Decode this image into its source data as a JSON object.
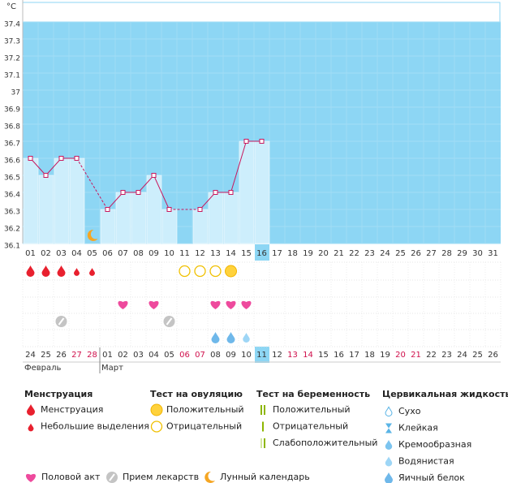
{
  "chart_data": {
    "type": "line",
    "y_unit": "°C",
    "categories": [
      "01",
      "02",
      "03",
      "04",
      "05",
      "06",
      "07",
      "08",
      "09",
      "10",
      "11",
      "12",
      "13",
      "14",
      "15",
      "16",
      "17",
      "18",
      "19",
      "20",
      "21",
      "22",
      "23",
      "24",
      "25",
      "26",
      "27",
      "28",
      "29",
      "30",
      "31"
    ],
    "values": [
      36.6,
      36.5,
      36.6,
      36.6,
      null,
      36.3,
      36.4,
      36.4,
      36.5,
      36.3,
      null,
      36.3,
      36.4,
      36.4,
      36.7,
      36.7,
      null,
      null,
      null,
      null,
      null,
      null,
      null,
      null,
      null,
      null,
      null,
      null,
      null,
      null,
      null
    ],
    "ylim": [
      36.1,
      37.4
    ],
    "yticks": [
      36.1,
      36.2,
      36.3,
      36.4,
      36.5,
      36.6,
      36.7,
      36.8,
      36.9,
      37,
      37.1,
      37.2,
      37.3,
      37.4
    ],
    "color": "#c8175d",
    "today_index": 15,
    "dates": [
      "24",
      "25",
      "26",
      "27",
      "28",
      "01",
      "02",
      "03",
      "04",
      "05",
      "06",
      "07",
      "08",
      "09",
      "10",
      "11",
      "12",
      "13",
      "14",
      "15",
      "16",
      "17",
      "18",
      "19",
      "20",
      "21",
      "22",
      "23",
      "24",
      "25",
      "26"
    ],
    "weekend_indices": [
      3,
      4,
      10,
      11,
      17,
      18,
      24,
      25
    ],
    "months": [
      {
        "label": "Февраль",
        "start": 0
      },
      {
        "label": "Март",
        "start": 5
      }
    ],
    "legend": {
      "groups": [
        {
          "title": "Менструация",
          "items": [
            {
              "label": "Менструация",
              "days": [
                0,
                1,
                2
              ]
            },
            {
              "label": "Небольшие выделения",
              "days": [
                3,
                4
              ]
            }
          ]
        },
        {
          "title": "Тест на овуляцию",
          "items": [
            {
              "label": "Положительный",
              "days": [
                13
              ]
            },
            {
              "label": "Отрицательный",
              "days": [
                10,
                11,
                12
              ]
            }
          ]
        },
        {
          "title": "Тест на беременность",
          "items": [
            {
              "label": "Положительный",
              "days": []
            },
            {
              "label": "Отрицательный",
              "days": []
            },
            {
              "label": "Слабоположительный",
              "days": []
            }
          ]
        },
        {
          "title": "Цервикальная жидкость",
          "items": [
            {
              "label": "Сухо",
              "days": []
            },
            {
              "label": "Клейкая",
              "days": []
            },
            {
              "label": "Кремообразная",
              "days": []
            },
            {
              "label": "Водянистая",
              "days": [
                14
              ]
            },
            {
              "label": "Яичный белок",
              "days": [
                12,
                13
              ]
            }
          ]
        }
      ],
      "other": [
        {
          "label": "Половой акт",
          "days": [
            6,
            8,
            12,
            13,
            14
          ]
        },
        {
          "label": "Прием лекарств",
          "days": [
            2,
            9
          ]
        },
        {
          "label": "Лунный календарь",
          "days": [
            4
          ]
        }
      ]
    }
  }
}
